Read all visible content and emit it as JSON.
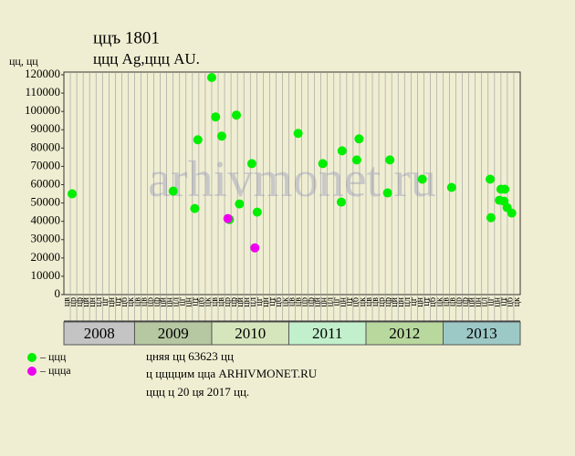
{
  "chart_data": {
    "type": "scatter",
    "title": "ццъ 1801",
    "subtitle": "ццц Ag,ццц AU.",
    "ylabel": "цц, цц",
    "watermark": "arhivmonet.ru",
    "footer": [
      "цняя цц 63623 цц",
      "ц ццццим цца ARHIVMONET.RU",
      "ццц ц 20 ця 2017 цц."
    ],
    "xlim": [
      2008.0833,
      2014.0
    ],
    "ylim": [
      0,
      121500
    ],
    "yticks": [
      0,
      10000,
      20000,
      30000,
      40000,
      50000,
      60000,
      70000,
      80000,
      90000,
      100000,
      110000,
      120000
    ],
    "years": [
      "2008",
      "2009",
      "2010",
      "2011",
      "2012",
      "2013"
    ],
    "year_colors": [
      "#c4c4c4",
      "#b6c8a2",
      "#d6e6bc",
      "#c2f0cc",
      "#b8d89e",
      "#9cc8c6"
    ],
    "months": [
      "цв",
      "цр",
      "цр",
      "цй",
      "цн",
      "цл",
      "цг",
      "цн",
      "цт",
      "цб",
      "цк",
      "цв",
      "цв",
      "цр",
      "цр",
      "цй",
      "цн",
      "цл",
      "цг",
      "цн",
      "цт",
      "цб",
      "цк",
      "цв",
      "цв",
      "цр",
      "цр",
      "цй",
      "цн",
      "цл",
      "цг",
      "цн",
      "цт",
      "цб",
      "цк",
      "цв",
      "цв",
      "цр",
      "цр",
      "цй",
      "цн",
      "цл",
      "цг",
      "цн",
      "цт",
      "цб",
      "цк",
      "цв",
      "цв",
      "цр",
      "цр",
      "цй",
      "цн",
      "цл",
      "цг",
      "цн",
      "цт",
      "цб",
      "цк",
      "цв",
      "цв",
      "цр",
      "цр",
      "цй",
      "цн",
      "цл",
      "цг",
      "цн",
      "цт",
      "цб",
      "цк"
    ],
    "series": [
      {
        "name": "– ццц",
        "color": "#00ee00",
        "x": [
          2008.19,
          2009.5,
          2009.78,
          2009.82,
          2010.0,
          2010.05,
          2010.13,
          2010.23,
          2010.32,
          2010.36,
          2010.52,
          2010.59,
          2011.12,
          2011.44,
          2011.68,
          2011.69,
          2011.88,
          2011.91,
          2012.28,
          2012.31,
          2012.73,
          2013.11,
          2013.61,
          2013.62,
          2013.73,
          2013.75,
          2013.79,
          2013.8,
          2013.83,
          2013.89
        ],
        "values": [
          55000,
          56500,
          47000,
          84500,
          118500,
          97000,
          86500,
          41000,
          98000,
          49500,
          71500,
          45000,
          88000,
          71500,
          50500,
          78500,
          73500,
          85000,
          55500,
          73500,
          63000,
          58500,
          63000,
          42000,
          51500,
          57500,
          51000,
          57500,
          47500,
          44500
        ]
      },
      {
        "name": "– цццa",
        "color": "#ee00ee",
        "x": [
          2010.21,
          2010.56
        ],
        "values": [
          41500,
          25500
        ]
      }
    ]
  }
}
